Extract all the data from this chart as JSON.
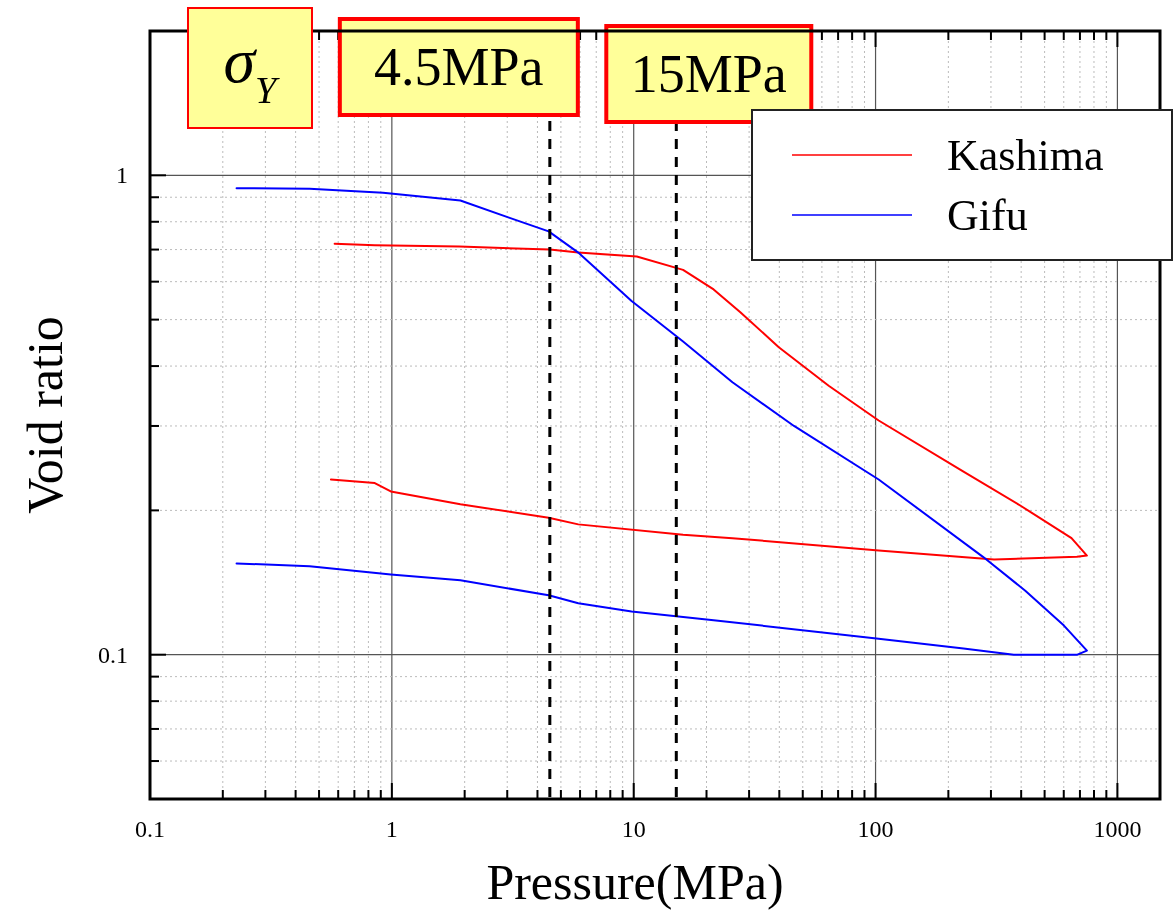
{
  "chart_data": {
    "type": "line",
    "xlabel": "Pressure(MPa)",
    "ylabel": "Void ratio",
    "log": "xy",
    "grid": true,
    "legend": "top right",
    "line_style": "solid",
    "marker": "none",
    "xlim": [
      0.1,
      1500
    ],
    "ylim": [
      0.05,
      2
    ],
    "xticks": [
      0.1,
      {
        "value": 0.2,
        "label": null
      },
      {
        "value": 0.3,
        "label": null
      },
      {
        "value": 0.4,
        "label": null
      },
      {
        "value": 0.5,
        "label": null
      },
      {
        "value": 0.6,
        "label": null
      },
      {
        "value": 0.7,
        "label": null
      },
      {
        "value": 0.8,
        "label": null
      },
      {
        "value": 0.9,
        "label": null
      },
      1,
      {
        "value": 2,
        "label": null
      },
      {
        "value": 3,
        "label": null
      },
      {
        "value": 4,
        "label": null
      },
      {
        "value": 5,
        "label": null
      },
      {
        "value": 6,
        "label": null
      },
      {
        "value": 7,
        "label": null
      },
      {
        "value": 8,
        "label": null
      },
      {
        "value": 9,
        "label": null
      },
      10,
      {
        "value": 20,
        "label": null
      },
      {
        "value": 30,
        "label": null
      },
      {
        "value": 40,
        "label": null
      },
      {
        "value": 50,
        "label": null
      },
      {
        "value": 60,
        "label": null
      },
      {
        "value": 70,
        "label": null
      },
      {
        "value": 80,
        "label": null
      },
      {
        "value": 90,
        "label": null
      },
      100,
      {
        "value": 200,
        "label": null
      },
      {
        "value": 300,
        "label": null
      },
      {
        "value": 400,
        "label": null
      },
      {
        "value": 500,
        "label": null
      },
      {
        "value": 600,
        "label": null
      },
      {
        "value": 700,
        "label": null
      },
      {
        "value": 800,
        "label": null
      },
      {
        "value": 900,
        "label": null
      },
      1000
    ],
    "yticks": [
      {
        "value": 0.06,
        "label": null
      },
      {
        "value": 0.07,
        "label": null
      },
      {
        "value": 0.08,
        "label": null
      },
      {
        "value": 0.09,
        "label": null
      },
      0.1,
      {
        "value": 0.2,
        "label": null
      },
      {
        "value": 0.3,
        "label": null
      },
      {
        "value": 0.4,
        "label": null
      },
      {
        "value": 0.5,
        "label": null
      },
      {
        "value": 0.6,
        "label": null
      },
      {
        "value": 0.7,
        "label": null
      },
      {
        "value": 0.8,
        "label": null
      },
      {
        "value": 0.9,
        "label": null
      },
      1
    ],
    "ref_lines": [
      {
        "axis": "x",
        "value": 4.5,
        "label": "4.5MPa",
        "color": "#000000",
        "line_style": "dashed"
      },
      {
        "axis": "x",
        "value": 15,
        "label": "15MPa",
        "color": "#000000",
        "line_style": "dashed"
      }
    ],
    "annotations": [
      "σ$_{Y}$"
    ],
    "series": [
      {
        "name": "Kashima",
        "color": "#ff0000",
        "x": [
          0.58,
          0.85,
          1.9,
          4.5,
          5.9,
          10.3,
          16,
          21.4,
          27.6,
          39.8,
          64,
          103,
          231,
          401,
          646,
          748,
          680,
          309,
          103,
          25.6,
          16,
          5.9,
          4.45,
          1.92,
          0.99,
          0.85,
          0.56
        ],
        "values": [
          0.72,
          0.715,
          0.71,
          0.7,
          0.69,
          0.677,
          0.635,
          0.578,
          0.518,
          0.438,
          0.364,
          0.308,
          0.241,
          0.204,
          0.175,
          0.161,
          0.16,
          0.158,
          0.165,
          0.175,
          0.178,
          0.187,
          0.193,
          0.206,
          0.219,
          0.228,
          0.232
        ]
      },
      {
        "name": "Gifu",
        "color": "#0000ff",
        "x": [
          0.228,
          0.457,
          0.92,
          1.92,
          3.07,
          4.45,
          5.9,
          9.8,
          16,
          25.6,
          46,
          103,
          278,
          416,
          601,
          748,
          683,
          373,
          231,
          103,
          21.4,
          9.8,
          5.9,
          4.45,
          1.92,
          0.99,
          0.457,
          0.228
        ],
        "values": [
          0.94,
          0.937,
          0.92,
          0.886,
          0.815,
          0.764,
          0.69,
          0.547,
          0.45,
          0.37,
          0.3,
          0.232,
          0.16,
          0.136,
          0.115,
          0.102,
          0.1,
          0.1,
          0.103,
          0.108,
          0.118,
          0.123,
          0.128,
          0.133,
          0.143,
          0.147,
          0.153,
          0.155
        ]
      }
    ]
  }
}
